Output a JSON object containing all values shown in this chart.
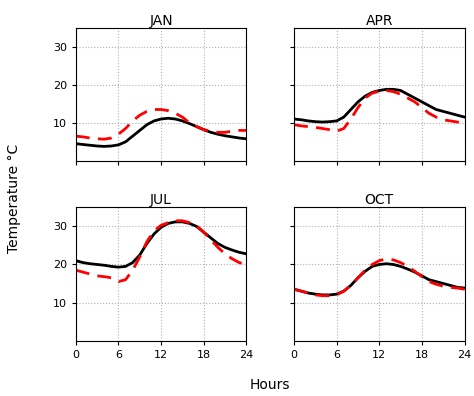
{
  "subplots": [
    {
      "title": "JAN",
      "hours": [
        0,
        1,
        2,
        3,
        4,
        5,
        6,
        7,
        8,
        9,
        10,
        11,
        12,
        13,
        14,
        15,
        16,
        17,
        18,
        19,
        20,
        21,
        22,
        23,
        24
      ],
      "black": [
        4.5,
        4.3,
        4.1,
        3.9,
        3.8,
        3.9,
        4.2,
        5.0,
        6.5,
        8.0,
        9.5,
        10.5,
        11.0,
        11.2,
        11.0,
        10.5,
        9.8,
        9.0,
        8.2,
        7.5,
        7.0,
        6.6,
        6.3,
        6.0,
        5.8
      ],
      "red": [
        6.5,
        6.3,
        6.0,
        5.8,
        5.7,
        6.0,
        7.0,
        8.5,
        10.5,
        12.0,
        13.0,
        13.5,
        13.5,
        13.2,
        12.5,
        11.5,
        10.0,
        9.0,
        8.2,
        7.8,
        7.5,
        7.5,
        7.8,
        8.0,
        8.0
      ]
    },
    {
      "title": "APR",
      "hours": [
        0,
        1,
        2,
        3,
        4,
        5,
        6,
        7,
        8,
        9,
        10,
        11,
        12,
        13,
        14,
        15,
        16,
        17,
        18,
        19,
        20,
        21,
        22,
        23,
        24
      ],
      "black": [
        11.0,
        10.8,
        10.5,
        10.3,
        10.2,
        10.3,
        10.5,
        11.5,
        13.5,
        15.5,
        17.0,
        18.0,
        18.5,
        18.8,
        18.8,
        18.5,
        17.5,
        16.5,
        15.5,
        14.5,
        13.5,
        13.0,
        12.5,
        12.0,
        11.5
      ],
      "red": [
        9.5,
        9.2,
        9.0,
        8.8,
        8.5,
        8.2,
        7.8,
        8.5,
        11.0,
        14.0,
        16.5,
        17.8,
        18.3,
        18.5,
        18.2,
        17.5,
        16.5,
        15.5,
        14.0,
        12.5,
        11.5,
        10.8,
        10.5,
        10.2,
        10.0
      ]
    },
    {
      "title": "JUL",
      "hours": [
        0,
        1,
        2,
        3,
        4,
        5,
        6,
        7,
        8,
        9,
        10,
        11,
        12,
        13,
        14,
        15,
        16,
        17,
        18,
        19,
        20,
        21,
        22,
        23,
        24
      ],
      "black": [
        21.0,
        20.5,
        20.2,
        20.0,
        19.8,
        19.5,
        19.3,
        19.5,
        20.5,
        22.5,
        25.5,
        28.0,
        29.8,
        30.8,
        31.2,
        31.2,
        30.8,
        30.0,
        28.5,
        27.0,
        25.5,
        24.5,
        23.8,
        23.2,
        22.8
      ],
      "red": [
        18.5,
        18.0,
        17.5,
        17.0,
        16.8,
        16.5,
        15.5,
        16.0,
        18.5,
        22.0,
        26.0,
        28.8,
        30.3,
        31.0,
        31.5,
        31.5,
        31.0,
        30.2,
        28.5,
        26.5,
        24.5,
        22.8,
        21.5,
        20.5,
        20.0
      ]
    },
    {
      "title": "OCT",
      "hours": [
        0,
        1,
        2,
        3,
        4,
        5,
        6,
        7,
        8,
        9,
        10,
        11,
        12,
        13,
        14,
        15,
        16,
        17,
        18,
        19,
        20,
        21,
        22,
        23,
        24
      ],
      "black": [
        13.5,
        13.0,
        12.5,
        12.2,
        12.0,
        12.0,
        12.2,
        13.0,
        14.5,
        16.5,
        18.2,
        19.5,
        20.0,
        20.2,
        20.0,
        19.5,
        18.8,
        18.0,
        17.0,
        16.0,
        15.5,
        15.0,
        14.5,
        14.0,
        13.8
      ],
      "red": [
        13.5,
        13.0,
        12.5,
        12.0,
        11.8,
        11.8,
        12.0,
        13.0,
        14.5,
        16.5,
        18.5,
        20.0,
        21.0,
        21.5,
        21.2,
        20.5,
        19.5,
        18.2,
        16.8,
        15.5,
        14.8,
        14.3,
        14.0,
        13.8,
        13.5
      ]
    }
  ],
  "xlabel": "Hours",
  "ylabel": "Temperature °C",
  "xticks": [
    0,
    6,
    12,
    18,
    24
  ],
  "yticks": [
    10,
    20,
    30
  ],
  "ylim": [
    0,
    35
  ],
  "xlim": [
    0,
    24
  ],
  "black_lw": 2.0,
  "red_lw": 2.0,
  "red_dash_on": 5,
  "red_dash_off": 3,
  "grid_color": "#b0b0b0",
  "title_fontsize": 10,
  "tick_fontsize": 8,
  "label_fontsize": 10
}
